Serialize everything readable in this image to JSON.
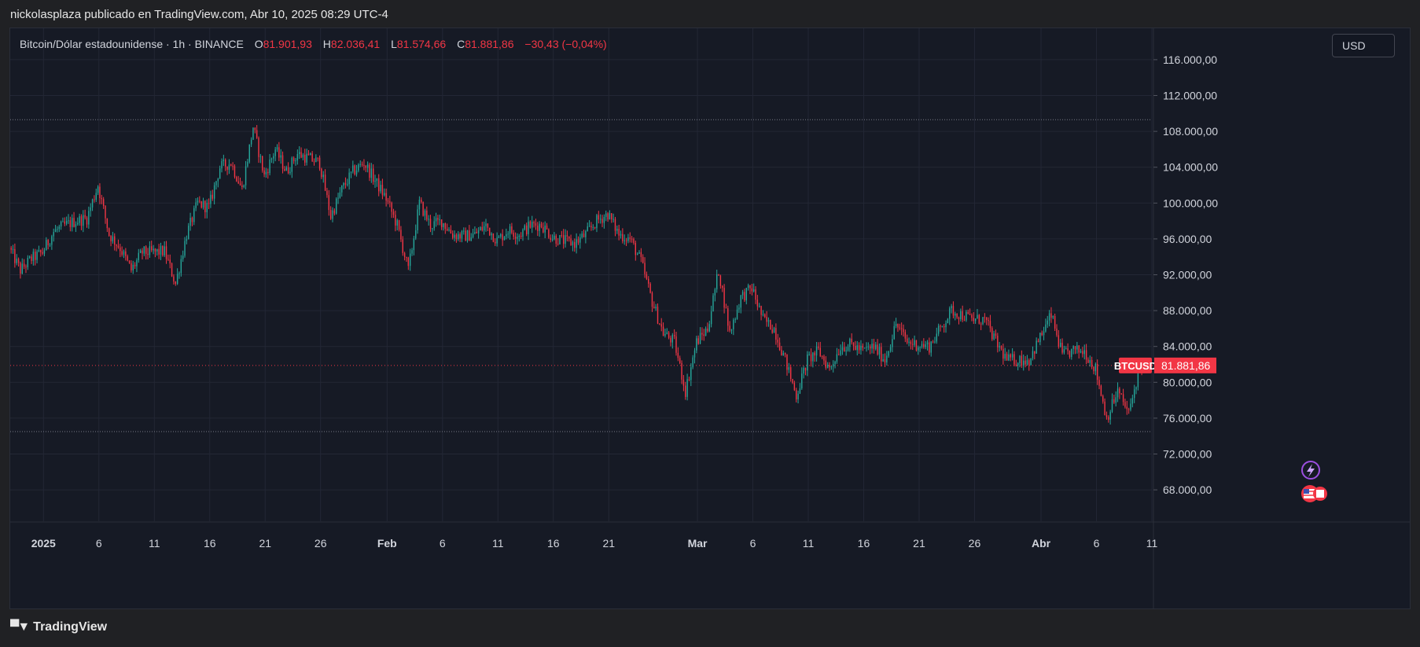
{
  "header": {
    "attribution": "nickolasplaza publicado en TradingView.com, Abr 10, 2025 08:29 UTC-4"
  },
  "legend": {
    "symbol": "Bitcoin/Dólar estadounidense · 1h · BINANCE",
    "o_label": "O",
    "o_value": "81.901,93",
    "h_label": "H",
    "h_value": "82.036,41",
    "l_label": "L",
    "l_value": "81.574,66",
    "c_label": "C",
    "c_value": "81.881,86",
    "change": "−30,43 (−0,04%)"
  },
  "currency_button": "USD",
  "price_tag": {
    "symbol": "BTCUSD",
    "value": "81.881,86"
  },
  "footer": {
    "brand": "TradingView"
  },
  "colors": {
    "up": "#26a69a",
    "down": "#f23645",
    "background": "#161a25",
    "grid": "#232735"
  },
  "icons": [
    "lightning-icon",
    "us-flag-icon"
  ],
  "chart_data": {
    "type": "line",
    "title": "",
    "xlabel": "",
    "ylabel": "",
    "y_ticks": [
      68000,
      72000,
      76000,
      80000,
      84000,
      88000,
      92000,
      96000,
      100000,
      104000,
      108000,
      112000,
      116000
    ],
    "y_tick_labels": [
      "68.000,00",
      "72.000,00",
      "76.000,00",
      "80.000,00",
      "84.000,00",
      "88.000,00",
      "92.000,00",
      "96.000,00",
      "100.000,00",
      "104.000,00",
      "108.000,00",
      "112.000,00",
      "116.000,00"
    ],
    "ylim": [
      64500,
      119500
    ],
    "xlim": [
      "2024-12-29",
      "2025-04-11"
    ],
    "x_ticks": [
      {
        "date": "2025-01-01",
        "label": "2025",
        "bold": true
      },
      {
        "date": "2025-01-06",
        "label": "6"
      },
      {
        "date": "2025-01-11",
        "label": "11"
      },
      {
        "date": "2025-01-16",
        "label": "16"
      },
      {
        "date": "2025-01-21",
        "label": "21"
      },
      {
        "date": "2025-01-26",
        "label": "26"
      },
      {
        "date": "2025-02-01",
        "label": "Feb",
        "bold": true
      },
      {
        "date": "2025-02-06",
        "label": "6"
      },
      {
        "date": "2025-02-11",
        "label": "11"
      },
      {
        "date": "2025-02-16",
        "label": "16"
      },
      {
        "date": "2025-02-21",
        "label": "21"
      },
      {
        "date": "2025-03-01",
        "label": "Mar",
        "bold": true
      },
      {
        "date": "2025-03-06",
        "label": "6"
      },
      {
        "date": "2025-03-11",
        "label": "11"
      },
      {
        "date": "2025-03-16",
        "label": "16"
      },
      {
        "date": "2025-03-21",
        "label": "21"
      },
      {
        "date": "2025-03-26",
        "label": "26"
      },
      {
        "date": "2025-04-01",
        "label": "Abr",
        "bold": true
      },
      {
        "date": "2025-04-06",
        "label": "6"
      },
      {
        "date": "2025-04-11",
        "label": "11"
      }
    ],
    "reference_lines": {
      "high_dotted": 109300,
      "low_dotted": 74500,
      "last_price": 81881.86
    },
    "series": [
      {
        "values": [
          [
            "2024-12-29",
            95000
          ],
          [
            "2024-12-30",
            92500
          ],
          [
            "2024-12-31",
            93800
          ],
          [
            "2025-01-01",
            94500
          ],
          [
            "2025-01-02",
            96800
          ],
          [
            "2025-01-03",
            97500
          ],
          [
            "2025-01-04",
            98000
          ],
          [
            "2025-01-05",
            98300
          ],
          [
            "2025-01-06",
            102000
          ],
          [
            "2025-01-07",
            96500
          ],
          [
            "2025-01-08",
            95000
          ],
          [
            "2025-01-09",
            92500
          ],
          [
            "2025-01-10",
            94500
          ],
          [
            "2025-01-11",
            94500
          ],
          [
            "2025-01-12",
            94600
          ],
          [
            "2025-01-13",
            91000
          ],
          [
            "2025-01-14",
            96500
          ],
          [
            "2025-01-15",
            100000
          ],
          [
            "2025-01-16",
            99500
          ],
          [
            "2025-01-17",
            104000
          ],
          [
            "2025-01-18",
            104500
          ],
          [
            "2025-01-19",
            101500
          ],
          [
            "2025-01-20",
            108500
          ],
          [
            "2025-01-21",
            103000
          ],
          [
            "2025-01-22",
            106000
          ],
          [
            "2025-01-23",
            103500
          ],
          [
            "2025-01-24",
            105500
          ],
          [
            "2025-01-25",
            105000
          ],
          [
            "2025-01-26",
            104500
          ],
          [
            "2025-01-27",
            98500
          ],
          [
            "2025-01-28",
            101500
          ],
          [
            "2025-01-29",
            103500
          ],
          [
            "2025-01-30",
            104500
          ],
          [
            "2025-01-31",
            102500
          ],
          [
            "2025-02-01",
            100500
          ],
          [
            "2025-02-02",
            97500
          ],
          [
            "2025-02-03",
            92500
          ],
          [
            "2025-02-04",
            100000
          ],
          [
            "2025-02-05",
            97500
          ],
          [
            "2025-02-06",
            98000
          ],
          [
            "2025-02-07",
            96500
          ],
          [
            "2025-02-08",
            96300
          ],
          [
            "2025-02-09",
            96500
          ],
          [
            "2025-02-10",
            97500
          ],
          [
            "2025-02-11",
            95800
          ],
          [
            "2025-02-12",
            97000
          ],
          [
            "2025-02-13",
            96500
          ],
          [
            "2025-02-14",
            97500
          ],
          [
            "2025-02-15",
            97600
          ],
          [
            "2025-02-16",
            96200
          ],
          [
            "2025-02-17",
            95800
          ],
          [
            "2025-02-18",
            95500
          ],
          [
            "2025-02-19",
            96500
          ],
          [
            "2025-02-20",
            98000
          ],
          [
            "2025-02-21",
            98800
          ],
          [
            "2025-02-22",
            96500
          ],
          [
            "2025-02-23",
            96000
          ],
          [
            "2025-02-24",
            93500
          ],
          [
            "2025-02-25",
            89000
          ],
          [
            "2025-02-26",
            85500
          ],
          [
            "2025-02-27",
            84500
          ],
          [
            "2025-02-28",
            79000
          ],
          [
            "2025-03-01",
            84500
          ],
          [
            "2025-03-02",
            86000
          ],
          [
            "2025-03-03",
            92500
          ],
          [
            "2025-03-04",
            85500
          ],
          [
            "2025-03-05",
            89500
          ],
          [
            "2025-03-06",
            90500
          ],
          [
            "2025-03-07",
            87000
          ],
          [
            "2025-03-08",
            86000
          ],
          [
            "2025-03-09",
            82500
          ],
          [
            "2025-03-10",
            78500
          ],
          [
            "2025-03-11",
            82500
          ],
          [
            "2025-03-12",
            83500
          ],
          [
            "2025-03-13",
            81500
          ],
          [
            "2025-03-14",
            84000
          ],
          [
            "2025-03-15",
            84200
          ],
          [
            "2025-03-16",
            83500
          ],
          [
            "2025-03-17",
            84000
          ],
          [
            "2025-03-18",
            82500
          ],
          [
            "2025-03-19",
            86500
          ],
          [
            "2025-03-20",
            84500
          ],
          [
            "2025-03-21",
            84200
          ],
          [
            "2025-03-22",
            84000
          ],
          [
            "2025-03-23",
            86000
          ],
          [
            "2025-03-24",
            88000
          ],
          [
            "2025-03-25",
            87500
          ],
          [
            "2025-03-26",
            87000
          ],
          [
            "2025-03-27",
            87000
          ],
          [
            "2025-03-28",
            84500
          ],
          [
            "2025-03-29",
            82500
          ],
          [
            "2025-03-30",
            82500
          ],
          [
            "2025-03-31",
            82500
          ],
          [
            "2025-04-01",
            85000
          ],
          [
            "2025-04-02",
            87500
          ],
          [
            "2025-04-03",
            83000
          ],
          [
            "2025-04-04",
            83500
          ],
          [
            "2025-04-05",
            83500
          ],
          [
            "2025-04-06",
            81500
          ],
          [
            "2025-04-07",
            76000
          ],
          [
            "2025-04-08",
            79000
          ],
          [
            "2025-04-09",
            76500
          ],
          [
            "2025-04-10",
            81881.86
          ]
        ]
      }
    ],
    "legend": "none",
    "grid": true
  }
}
